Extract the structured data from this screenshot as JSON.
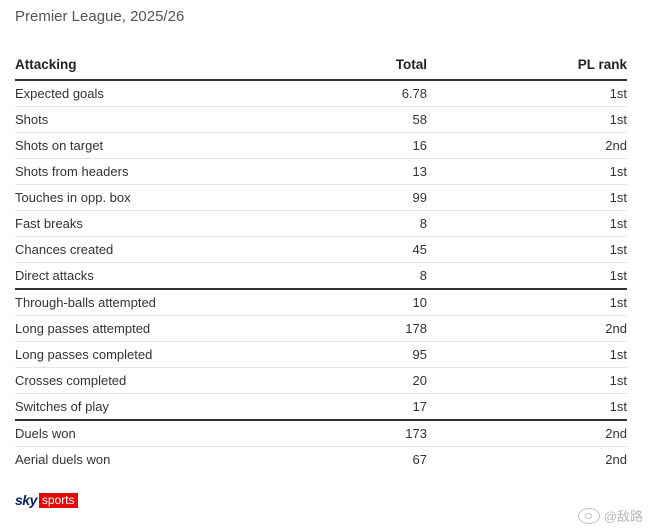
{
  "subtitle": "Premier League, 2025/26",
  "table": {
    "headers": {
      "stat": "Attacking",
      "total": "Total",
      "rank": "PL rank"
    },
    "rows": [
      {
        "stat": "Expected goals",
        "total": "6.78",
        "rank": "1st"
      },
      {
        "stat": "Shots",
        "total": "58",
        "rank": "1st"
      },
      {
        "stat": "Shots on target",
        "total": "16",
        "rank": "2nd"
      },
      {
        "stat": "Shots from headers",
        "total": "13",
        "rank": "1st"
      },
      {
        "stat": "Touches in opp. box",
        "total": "99",
        "rank": "1st"
      },
      {
        "stat": "Fast breaks",
        "total": "8",
        "rank": "1st"
      },
      {
        "stat": "Chances created",
        "total": "45",
        "rank": "1st"
      },
      {
        "stat": "Direct attacks",
        "total": "8",
        "rank": "1st"
      },
      {
        "stat": "Through-balls attempted",
        "total": "10",
        "rank": "1st"
      },
      {
        "stat": "Long passes attempted",
        "total": "178",
        "rank": "2nd"
      },
      {
        "stat": "Long passes completed",
        "total": "95",
        "rank": "1st"
      },
      {
        "stat": "Crosses completed",
        "total": "20",
        "rank": "1st"
      },
      {
        "stat": "Switches of play",
        "total": "17",
        "rank": "1st"
      },
      {
        "stat": "Duels won",
        "total": "173",
        "rank": "2nd"
      },
      {
        "stat": "Aerial duels won",
        "total": "67",
        "rank": "2nd"
      }
    ]
  },
  "logo": {
    "sky": "sky",
    "sports": "sports"
  },
  "watermark": "@敌路"
}
